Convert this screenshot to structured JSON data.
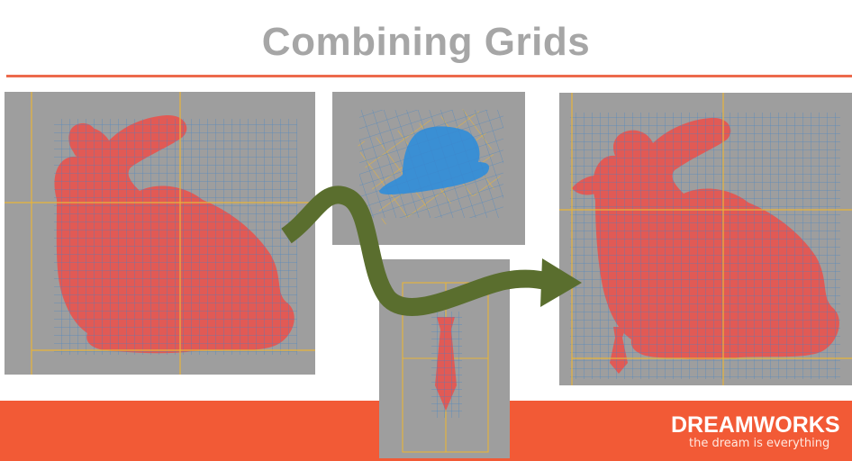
{
  "slide": {
    "title": "Combining Grids"
  },
  "colors": {
    "title_text": "#a6a6a6",
    "accent_rule": "#ec6a4c",
    "footer_band": "#f25a36",
    "panel_background": "#9e9e9e",
    "bunny_fill": "#e15a55",
    "hat_fill": "#3a8fd4",
    "grid_blue": "#3d83c9",
    "grid_orange": "#e8b43a",
    "arrow": "#5a6e2e"
  },
  "panels": [
    {
      "id": "bunny",
      "label": "bunny-grid-panel"
    },
    {
      "id": "hat",
      "label": "hat-grid-panel"
    },
    {
      "id": "tie",
      "label": "tie-grid-panel"
    },
    {
      "id": "combined",
      "label": "combined-grid-panel"
    }
  ],
  "logo": {
    "name": "DREAMWORKS",
    "tagline": "the dream is everything"
  }
}
